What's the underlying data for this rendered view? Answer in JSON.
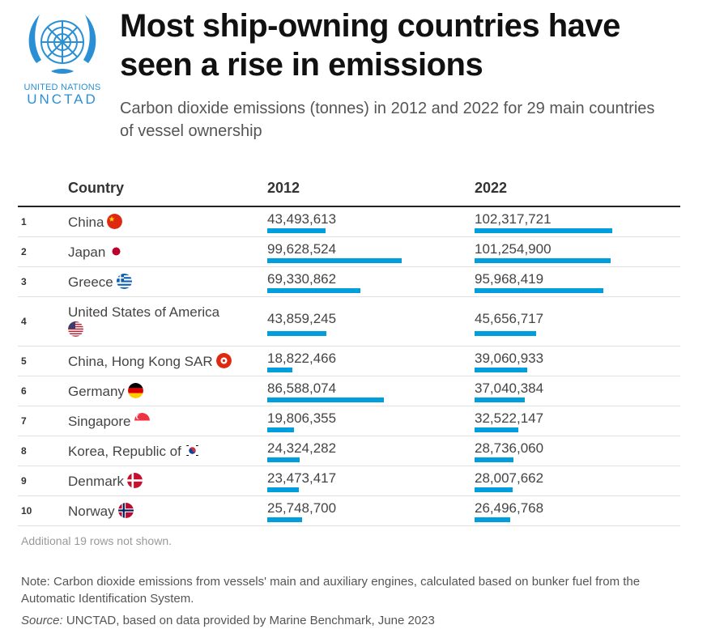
{
  "logo": {
    "line1": "UNITED NATIONS",
    "line2": "UNCTAD"
  },
  "title": "Most ship-owning countries have seen a rise in emissions",
  "subtitle": "Carbon dioxide emissions (tonnes) in 2012 and 2022 for 29 main countries of vessel ownership",
  "header": {
    "country": "Country",
    "y2012": "2012",
    "y2022": "2022"
  },
  "rows_hidden_note": "Additional 19 rows not shown.",
  "note": "Note: Carbon dioxide emissions from vessels' main and auxiliary engines, calculated based on bunker fuel from the Automatic Identification System.",
  "source_label": "Source:",
  "source_text": "UNCTAD, based on data provided by Marine Benchmark, June 2023",
  "colors": {
    "bar": "#009edb",
    "brand": "#2a8fd4"
  },
  "chart_data": {
    "type": "table",
    "title": "Most ship-owning countries have seen a rise in emissions",
    "subtitle": "Carbon dioxide emissions (tonnes) in 2012 and 2022 for 29 main countries of vessel ownership",
    "columns": [
      "Country",
      "2012",
      "2022"
    ],
    "rows": [
      {
        "rank": "1",
        "country": "China",
        "flag": "china",
        "v2012": 43493613,
        "v2022": 102317721,
        "t2012": "43,493,613",
        "t2022": "102,317,721"
      },
      {
        "rank": "2",
        "country": "Japan",
        "flag": "japan",
        "v2012": 99628524,
        "v2022": 101254900,
        "t2012": "99,628,524",
        "t2022": "101,254,900"
      },
      {
        "rank": "3",
        "country": "Greece",
        "flag": "greece",
        "v2012": 69330862,
        "v2022": 95968419,
        "t2012": "69,330,862",
        "t2022": "95,968,419"
      },
      {
        "rank": "4",
        "country": "United States of America",
        "flag": "usa",
        "v2012": 43859245,
        "v2022": 45656717,
        "t2012": "43,859,245",
        "t2022": "45,656,717"
      },
      {
        "rank": "5",
        "country": "China, Hong Kong SAR",
        "flag": "hongkong",
        "v2012": 18822466,
        "v2022": 39060933,
        "t2012": "18,822,466",
        "t2022": "39,060,933"
      },
      {
        "rank": "6",
        "country": "Germany",
        "flag": "germany",
        "v2012": 86588074,
        "v2022": 37040384,
        "t2012": "86,588,074",
        "t2022": "37,040,384"
      },
      {
        "rank": "7",
        "country": "Singapore",
        "flag": "singapore",
        "v2012": 19806355,
        "v2022": 32522147,
        "t2012": "19,806,355",
        "t2022": "32,522,147"
      },
      {
        "rank": "8",
        "country": "Korea, Republic of",
        "flag": "korea",
        "v2012": 24324282,
        "v2022": 28736060,
        "t2012": "24,324,282",
        "t2022": "28,736,060"
      },
      {
        "rank": "9",
        "country": "Denmark",
        "flag": "denmark",
        "v2012": 23473417,
        "v2022": 28007662,
        "t2012": "23,473,417",
        "t2022": "28,007,662"
      },
      {
        "rank": "10",
        "country": "Norway",
        "flag": "norway",
        "v2012": 25748700,
        "v2022": 26496768,
        "t2012": "25,748,700",
        "t2022": "26,496,768"
      }
    ],
    "bar_max": 102317721
  }
}
